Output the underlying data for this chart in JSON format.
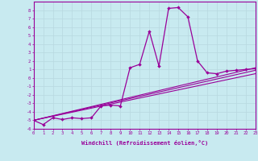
{
  "xlabel": "Windchill (Refroidissement éolien,°C)",
  "background_color": "#c8eaf0",
  "line_color": "#990099",
  "grid_color": "#b8d8e0",
  "xlim": [
    0,
    23
  ],
  "ylim": [
    -6,
    9
  ],
  "xticks": [
    0,
    1,
    2,
    3,
    4,
    5,
    6,
    7,
    8,
    9,
    10,
    11,
    12,
    13,
    14,
    15,
    16,
    17,
    18,
    19,
    20,
    21,
    22,
    23
  ],
  "yticks": [
    -6,
    -5,
    -4,
    -3,
    -2,
    -1,
    0,
    1,
    2,
    3,
    4,
    5,
    6,
    7,
    8
  ],
  "main_x": [
    0,
    1,
    2,
    3,
    4,
    5,
    6,
    7,
    8,
    9,
    10,
    11,
    12,
    13,
    14,
    15,
    16,
    17,
    18,
    19,
    20,
    21,
    22,
    23
  ],
  "main_y": [
    -5.0,
    -5.5,
    -4.7,
    -4.9,
    -4.7,
    -4.8,
    -4.7,
    -3.3,
    -3.2,
    -3.3,
    1.2,
    1.6,
    5.5,
    1.4,
    8.2,
    8.3,
    7.2,
    2.0,
    0.6,
    0.5,
    0.8,
    0.9,
    1.0,
    1.1
  ],
  "trend1_x": [
    0,
    23
  ],
  "trend1_y": [
    -5.0,
    1.2
  ],
  "trend2_x": [
    0,
    23
  ],
  "trend2_y": [
    -5.0,
    0.9
  ],
  "trend3_x": [
    0,
    23
  ],
  "trend3_y": [
    -5.0,
    0.5
  ]
}
